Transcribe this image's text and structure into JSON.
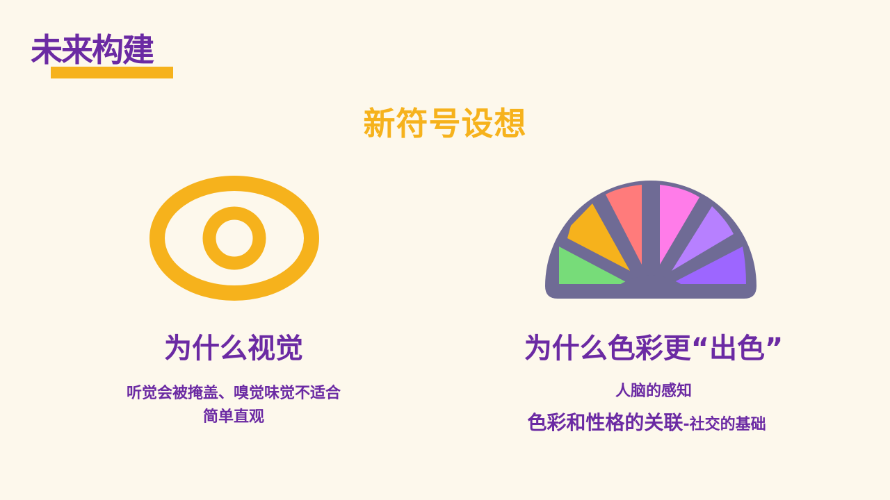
{
  "header": {
    "brand_title": "未来构建",
    "section_title": "新符号设想"
  },
  "left_card": {
    "icon": "eye-icon",
    "heading": "为什么视觉",
    "line1": "听觉会被掩盖、嗅觉味觉不适合",
    "line2": "简单直观"
  },
  "right_card": {
    "icon": "color-spectrum-icon",
    "heading": "为什么色彩更“出色”",
    "line1": "人脑的感知",
    "line2_main": "色彩和性格的关联",
    "line2_suffix": "-社交的基础"
  },
  "colors": {
    "background": "#fdf8ec",
    "purple": "#6b2aa3",
    "yellow": "#f6b21c",
    "spectrum_outline": "#6f6b95",
    "spectrum_segments": [
      "#77dc79",
      "#f6b21c",
      "#ff7b7b",
      "#ff7ce9",
      "#b780ff",
      "#9d66ff"
    ]
  }
}
